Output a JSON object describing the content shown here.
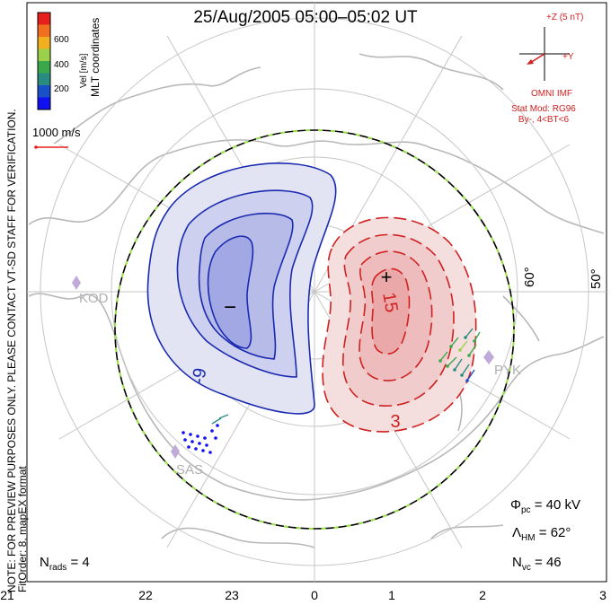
{
  "title": "25/Aug/2005 05:00–05:02 UT",
  "side_text": {
    "note": "NOTE: FOR PREVIEW PURPOSES ONLY. PLEASE CONTACT VT-SD STAFF FOR VERIFICATION.",
    "fit": "FitOrder: 8, mapEX format"
  },
  "legend": {
    "coord_label": "MLT coordinates",
    "vel_label": "Vel [m/s]",
    "ticks": [
      "600",
      "400",
      "200"
    ],
    "colors": [
      "#e8201c",
      "#f07020",
      "#f0b020",
      "#9ad04a",
      "#3aa84a",
      "#2a8c80",
      "#1850c8",
      "#1010f0"
    ],
    "vector_scale": "1000 m/s"
  },
  "imf": {
    "z_label": "+Z (5 nT)",
    "y_label": "+Y",
    "source": "OMNI IMF",
    "model": "Stat Mod: RG96",
    "condition": "By-, 4<BT<6",
    "color": "#d02020"
  },
  "map": {
    "lat_labels": [
      "60°",
      "50°"
    ],
    "stations": [
      "KOD",
      "SAS",
      "PYK"
    ],
    "contours_neg": {
      "label": "-9",
      "sign": "−",
      "color": "#1a2ab0"
    },
    "contours_pos": {
      "label": "15",
      "label2": "3",
      "sign": "+",
      "color": "#d02020"
    }
  },
  "stats": {
    "phi_pc": "Φpc = 40 kV",
    "lambda_hm": "ΛHM = 62°",
    "n_vc": "Nvc = 46",
    "n_rads": "Nrads = 4"
  },
  "axis_hours": [
    "21",
    "22",
    "23",
    "0",
    "1",
    "2",
    "3"
  ]
}
